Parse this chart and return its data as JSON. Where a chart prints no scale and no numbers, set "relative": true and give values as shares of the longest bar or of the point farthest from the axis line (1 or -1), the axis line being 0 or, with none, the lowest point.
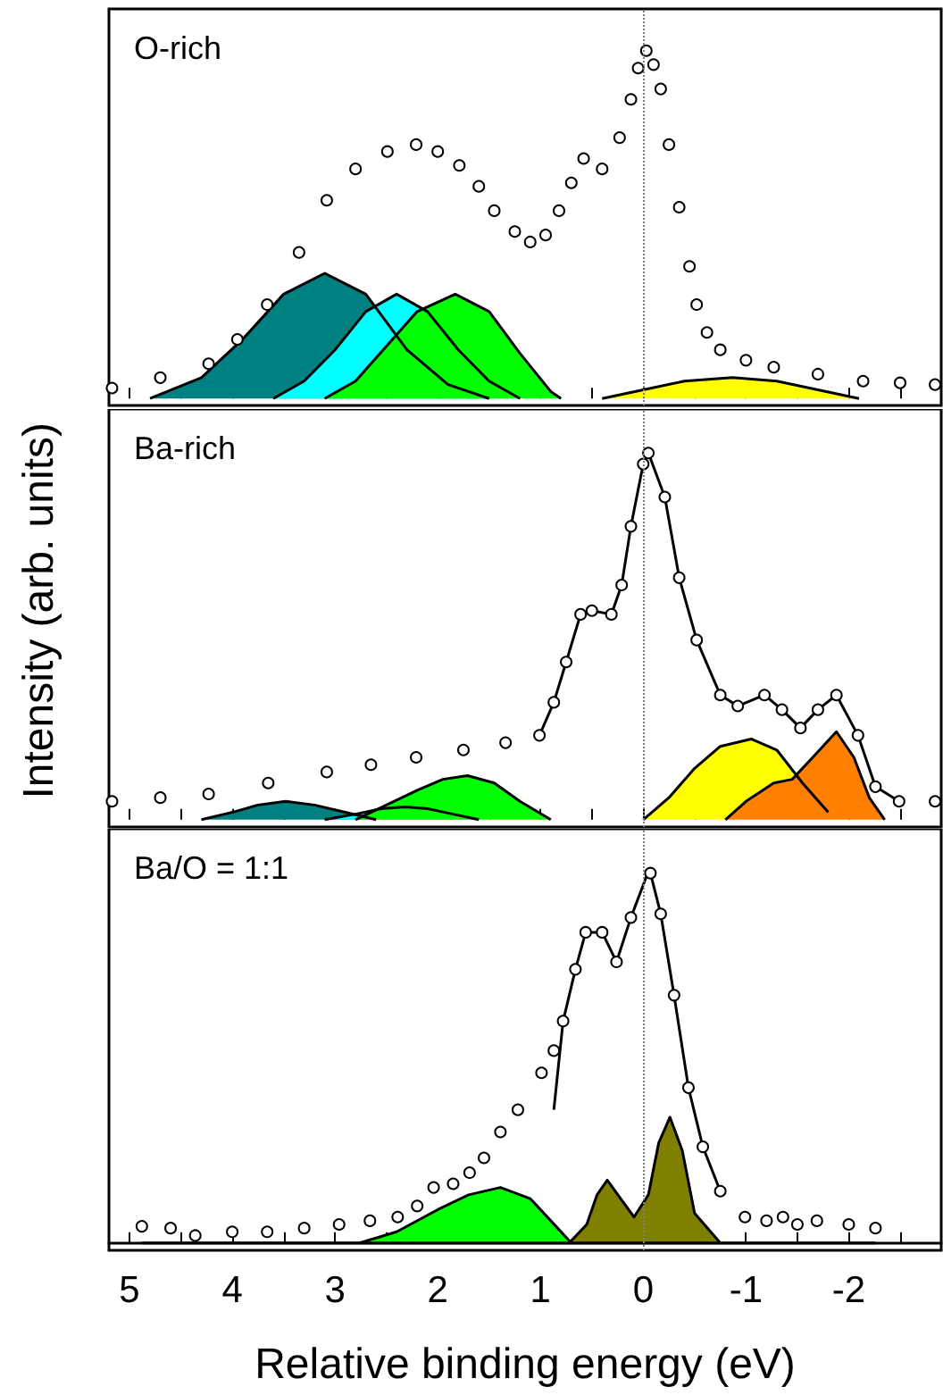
{
  "chart_data": [
    {
      "type": "scatter",
      "relative": true,
      "xlim": [
        5.2,
        -2.9
      ],
      "tick_labels": false,
      "grid": false,
      "annotations": [
        "O-rich"
      ],
      "xticks": [
        5,
        {
          "value": 4.5,
          "label": null
        },
        4,
        {
          "value": 3.5,
          "label": null
        },
        3,
        {
          "value": 2.5,
          "label": null
        },
        2,
        {
          "value": 1.5,
          "label": null
        },
        1,
        {
          "value": 0.5,
          "label": null
        },
        0,
        {
          "value": -0.5,
          "label": null
        },
        -1,
        {
          "value": -1.5,
          "label": null
        },
        -2,
        {
          "value": -2.5,
          "label": null
        }
      ],
      "ref_lines": [
        {
          "axis": "x",
          "value": 0,
          "color": "#808080",
          "line_style": "dotted"
        }
      ],
      "series": [
        {
          "color": "#000000",
          "marker": "circle",
          "x": [
            5.17,
            4.7,
            4.23,
            3.95,
            3.66,
            3.35,
            3.08,
            2.8,
            2.49,
            2.21,
            2.0,
            1.79,
            1.6,
            1.45,
            1.25,
            1.1,
            0.95,
            0.82,
            0.7,
            0.58,
            0.4,
            0.23,
            0.12,
            0.05,
            -0.03,
            -0.1,
            -0.17,
            -0.25,
            -0.35,
            -0.45,
            -0.52,
            -0.62,
            -0.75,
            -1.0,
            -1.27,
            -1.7,
            -2.14,
            -2.5,
            -2.84
          ],
          "values": [
            0.03,
            0.06,
            0.1,
            0.17,
            0.27,
            0.42,
            0.57,
            0.66,
            0.71,
            0.73,
            0.71,
            0.67,
            0.61,
            0.54,
            0.48,
            0.45,
            0.47,
            0.54,
            0.62,
            0.69,
            0.66,
            0.75,
            0.86,
            0.95,
            1.0,
            0.96,
            0.89,
            0.73,
            0.55,
            0.38,
            0.27,
            0.19,
            0.14,
            0.11,
            0.09,
            0.07,
            0.05,
            0.045,
            0.04
          ]
        },
        {
          "type": "area",
          "color": "#008080",
          "x": [
            4.8,
            4.3,
            3.9,
            3.5,
            3.1,
            2.7,
            2.3,
            1.9,
            1.5
          ],
          "values": [
            0,
            0.06,
            0.17,
            0.3,
            0.36,
            0.3,
            0.14,
            0.04,
            0
          ]
        },
        {
          "type": "area",
          "color": "#00ffff",
          "x": [
            3.6,
            3.3,
            3.0,
            2.7,
            2.4,
            2.1,
            1.8,
            1.5,
            1.2
          ],
          "values": [
            0,
            0.05,
            0.14,
            0.25,
            0.3,
            0.25,
            0.14,
            0.05,
            0
          ]
        },
        {
          "type": "area",
          "color": "#00ff00",
          "x": [
            3.1,
            2.8,
            2.5,
            2.2,
            1.83,
            1.5,
            1.2,
            0.9,
            0.8
          ],
          "values": [
            0,
            0.05,
            0.15,
            0.25,
            0.3,
            0.25,
            0.13,
            0.02,
            0
          ]
        },
        {
          "type": "area",
          "color": "#ffff00",
          "x": [
            0.4,
            0,
            -0.4,
            -0.87,
            -1.3,
            -1.7,
            -2.1
          ],
          "values": [
            0,
            0.025,
            0.05,
            0.06,
            0.05,
            0.025,
            0
          ]
        }
      ]
    },
    {
      "type": "scatter",
      "relative": true,
      "xlim": [
        5.2,
        -2.9
      ],
      "tick_labels": false,
      "grid": false,
      "xticks": [
        5,
        {
          "value": 4.5,
          "label": null
        },
        4,
        {
          "value": 3.5,
          "label": null
        },
        3,
        {
          "value": 2.5,
          "label": null
        },
        2,
        {
          "value": 1.5,
          "label": null
        },
        1,
        {
          "value": 0.5,
          "label": null
        },
        0,
        {
          "value": -0.5,
          "label": null
        },
        -1,
        {
          "value": -1.5,
          "label": null
        },
        -2,
        {
          "value": -2.5,
          "label": null
        }
      ],
      "ylabel": "Intensity (arb. units)",
      "annotations": [
        "Ba-rich"
      ],
      "ref_lines": [
        {
          "axis": "x",
          "value": 0,
          "color": "#808080",
          "line_style": "dotted"
        }
      ],
      "series": [
        {
          "type": "area",
          "color": "#008080",
          "x": [
            4.3,
            4.0,
            3.75,
            3.48,
            3.2,
            2.9,
            2.6
          ],
          "values": [
            0,
            0.02,
            0.04,
            0.05,
            0.04,
            0.02,
            0
          ]
        },
        {
          "type": "area",
          "color": "#00ffff",
          "x": [
            3.1,
            2.8,
            2.55,
            2.32,
            2.1,
            1.85,
            1.6
          ],
          "values": [
            0,
            0.015,
            0.03,
            0.035,
            0.03,
            0.015,
            0
          ]
        },
        {
          "type": "area",
          "color": "#00ff00",
          "x": [
            2.8,
            2.5,
            2.2,
            1.95,
            1.71,
            1.45,
            1.2,
            0.9
          ],
          "values": [
            0,
            0.04,
            0.08,
            0.11,
            0.12,
            0.1,
            0.05,
            0
          ]
        },
        {
          "type": "area",
          "color": "#ffff00",
          "x": [
            0,
            -0.25,
            -0.5,
            -0.75,
            -1.05,
            -1.3,
            -1.55,
            -1.8
          ],
          "values": [
            0,
            0.06,
            0.14,
            0.2,
            0.22,
            0.19,
            0.1,
            0.02
          ]
        },
        {
          "type": "area",
          "color": "#ff8000",
          "x": [
            -0.8,
            -1.0,
            -1.27,
            -1.45,
            -1.65,
            -1.88,
            -2.05,
            -2.2,
            -2.35
          ],
          "values": [
            0,
            0.05,
            0.1,
            0.11,
            0.17,
            0.24,
            0.17,
            0.06,
            0
          ]
        },
        {
          "type": "line",
          "color": "#000000",
          "x": [
            1.01,
            0.87,
            0.75,
            0.61,
            0.5,
            0.31,
            0.21,
            0.12,
            0.0,
            -0.05,
            -0.21,
            -0.35,
            -0.52,
            -0.75,
            -0.92,
            -1.18,
            -1.35,
            -1.53,
            -1.7,
            -1.88,
            -2.09,
            -2.26,
            -2.49
          ],
          "values": [
            0.23,
            0.32,
            0.43,
            0.56,
            0.57,
            0.56,
            0.64,
            0.8,
            0.97,
            1.0,
            0.88,
            0.66,
            0.49,
            0.34,
            0.31,
            0.34,
            0.3,
            0.25,
            0.3,
            0.34,
            0.23,
            0.09,
            0.05
          ]
        },
        {
          "color": "#000000",
          "marker": "circle",
          "x": [
            5.17,
            4.7,
            4.23,
            3.65,
            3.08,
            2.65,
            2.21,
            1.75,
            1.34,
            1.01,
            0.87,
            0.75,
            0.61,
            0.5,
            0.31,
            0.21,
            0.12,
            0.0,
            -0.05,
            -0.21,
            -0.35,
            -0.52,
            -0.75,
            -0.92,
            -1.18,
            -1.35,
            -1.53,
            -1.7,
            -1.88,
            -2.09,
            -2.26,
            -2.49,
            -2.84
          ],
          "values": [
            0.05,
            0.06,
            0.07,
            0.1,
            0.13,
            0.15,
            0.17,
            0.19,
            0.21,
            0.23,
            0.32,
            0.43,
            0.56,
            0.57,
            0.56,
            0.64,
            0.8,
            0.97,
            1.0,
            0.88,
            0.66,
            0.49,
            0.34,
            0.31,
            0.34,
            0.3,
            0.25,
            0.3,
            0.34,
            0.23,
            0.09,
            0.05,
            0.05
          ]
        }
      ]
    },
    {
      "type": "scatter",
      "relative": true,
      "xlim": [
        5.2,
        -2.9
      ],
      "tick_labels": "x",
      "grid": false,
      "xlabel": "Relative binding energy (eV)",
      "annotations": [
        "Ba/O = 1:1"
      ],
      "xticks": [
        5,
        {
          "value": 4.5,
          "label": null
        },
        4,
        {
          "value": 3.5,
          "label": null
        },
        3,
        {
          "value": 2.5,
          "label": null
        },
        2,
        {
          "value": 1.5,
          "label": null
        },
        1,
        {
          "value": 0.5,
          "label": null
        },
        0,
        {
          "value": -0.5,
          "label": null
        },
        -1,
        {
          "value": -1.5,
          "label": null
        },
        -2,
        {
          "value": -2.5,
          "label": null
        }
      ],
      "ref_lines": [
        {
          "axis": "x",
          "value": 0,
          "color": "#808080",
          "line_style": "dotted"
        }
      ],
      "series": [
        {
          "type": "line",
          "color": "#000000",
          "x": [
            4.88,
            -2.26
          ],
          "values": [
            0,
            0
          ]
        },
        {
          "type": "area",
          "color": "#00ff00",
          "x": [
            2.76,
            2.4,
            2.0,
            1.7,
            1.39,
            1.1,
            0.9,
            0.7
          ],
          "values": [
            0,
            0.03,
            0.09,
            0.13,
            0.15,
            0.12,
            0.06,
            0
          ]
        },
        {
          "type": "area",
          "color": "#808000",
          "x": [
            0.72,
            0.55,
            0.45,
            0.35,
            0.22,
            0.09,
            -0.05,
            -0.15,
            -0.26,
            -0.38,
            -0.5,
            -0.75
          ],
          "values": [
            0,
            0.05,
            0.13,
            0.17,
            0.12,
            0.07,
            0.13,
            0.27,
            0.34,
            0.25,
            0.08,
            0
          ]
        },
        {
          "type": "line",
          "color": "#000000",
          "x": [
            0.87,
            0.78,
            0.66,
            0.56,
            0.4,
            0.26,
            0.12,
            -0.03,
            -0.07,
            -0.17,
            -0.3,
            -0.44,
            -0.58,
            -0.75
          ],
          "values": [
            0.36,
            0.6,
            0.74,
            0.84,
            0.84,
            0.76,
            0.88,
            0.99,
            1.0,
            0.89,
            0.67,
            0.42,
            0.26,
            0.14
          ]
        },
        {
          "color": "#000000",
          "marker": "circle",
          "x": [
            4.88,
            4.6,
            4.36,
            4.0,
            3.66,
            3.3,
            2.96,
            2.66,
            2.39,
            2.2,
            2.04,
            1.85,
            1.69,
            1.55,
            1.39,
            1.22,
            0.99,
            0.87,
            0.78,
            0.66,
            0.56,
            0.4,
            0.26,
            0.12,
            -0.07,
            -0.17,
            -0.3,
            -0.44,
            -0.58,
            -0.75,
            -0.99,
            -1.2,
            -1.36,
            -1.5,
            -1.69,
            -2.0,
            -2.26
          ],
          "values": [
            0.045,
            0.04,
            0.02,
            0.03,
            0.03,
            0.04,
            0.05,
            0.06,
            0.07,
            0.1,
            0.15,
            0.16,
            0.19,
            0.23,
            0.3,
            0.36,
            0.46,
            0.52,
            0.6,
            0.74,
            0.84,
            0.84,
            0.76,
            0.88,
            1.0,
            0.89,
            0.67,
            0.42,
            0.26,
            0.14,
            0.07,
            0.06,
            0.07,
            0.05,
            0.06,
            0.05,
            0.04
          ]
        }
      ]
    }
  ]
}
